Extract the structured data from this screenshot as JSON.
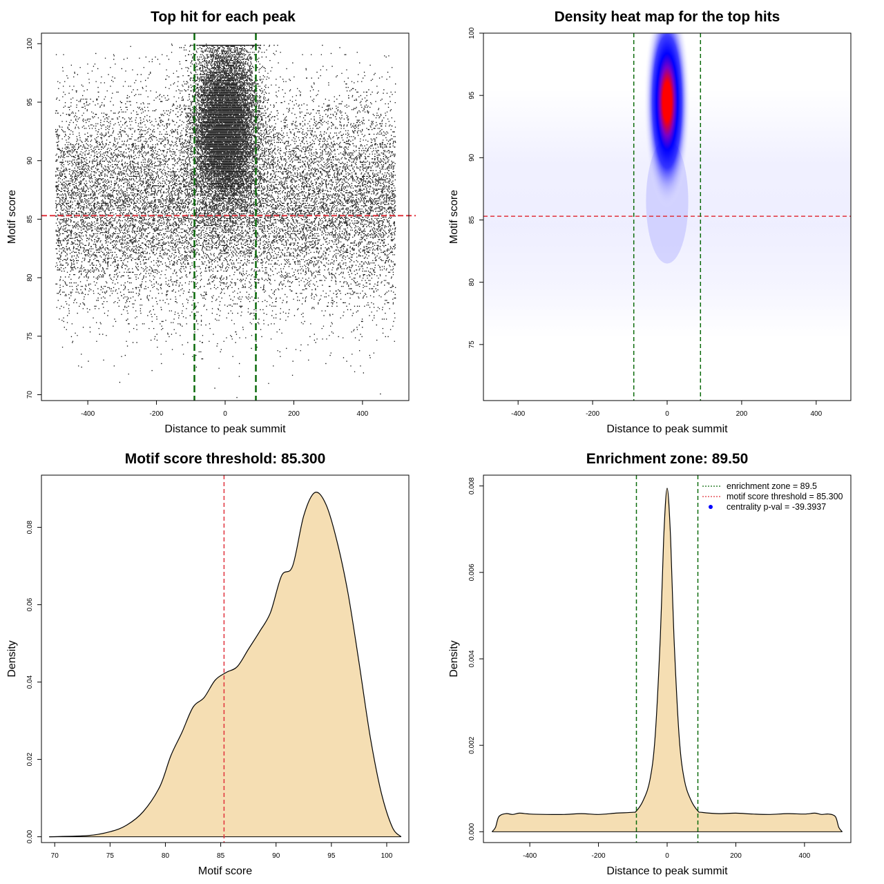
{
  "figure": {
    "colors": {
      "threshold": "#e0303a",
      "zone": "#0a6a0a",
      "fill": "#f5deb3",
      "point": "#000000",
      "heat_low": "#ffffff",
      "heat_mid": "#0000ff",
      "heat_high": "#ff0000",
      "legend_dot": "#0000ff"
    }
  },
  "chart_data": [
    {
      "type": "scatter",
      "title": "Top hit for each peak",
      "xlabel": "Distance to peak summit",
      "ylabel": "Motif score",
      "xlim": [
        -535,
        535
      ],
      "ylim": [
        69.5,
        100.9
      ],
      "xticks": [
        -400,
        -200,
        0,
        200,
        400
      ],
      "xtick_labels": [
        "-400",
        "-200",
        "0",
        "200",
        "400"
      ],
      "yticks": [
        70,
        75,
        80,
        85,
        90,
        95,
        100
      ],
      "ytick_labels": [
        "70",
        "75",
        "80",
        "85",
        "90",
        "95",
        "100"
      ],
      "threshold_y": 85.3,
      "zone_x": [
        -89.5,
        89.5
      ],
      "x_range": [
        -495,
        495
      ],
      "center_cluster": {
        "x_sd": 45,
        "y_mean": 93,
        "y_sd": 3.5
      },
      "background": {
        "y_mean": 86.5,
        "y_sd": 4.5
      }
    },
    {
      "type": "heatmap",
      "title": "Density heat map for the top hits",
      "xlabel": "Distance to peak summit",
      "ylabel": "Motif score",
      "xlim": [
        -493,
        493
      ],
      "ylim": [
        70.5,
        100.0
      ],
      "xticks": [
        -400,
        -200,
        0,
        200,
        400
      ],
      "xtick_labels": [
        "-400",
        "-200",
        "0",
        "200",
        "400"
      ],
      "yticks": [
        75,
        80,
        85,
        90,
        95,
        100
      ],
      "ytick_labels": [
        "75",
        "80",
        "85",
        "90",
        "95",
        "100"
      ],
      "threshold_y": 85.3,
      "zone_x": [
        -89.5,
        89.5
      ],
      "hotspot": {
        "x": 0,
        "y": 94.5,
        "x_sd": 30,
        "y_sd": 3.3
      },
      "background_band": {
        "y_center": 85.5,
        "y_sd": 4.0
      }
    },
    {
      "type": "area",
      "title": "Motif score threshold: 85.300",
      "xlabel": "Motif score",
      "ylabel": "Density",
      "xlim": [
        68.8,
        102.0
      ],
      "ylim": [
        -0.0015,
        0.0935
      ],
      "xticks": [
        70,
        75,
        80,
        85,
        90,
        95,
        100
      ],
      "xtick_labels": [
        "70",
        "75",
        "80",
        "85",
        "90",
        "95",
        "100"
      ],
      "yticks": [
        0,
        0.02,
        0.04,
        0.06,
        0.08
      ],
      "ytick_labels": [
        "0.00",
        "0.02",
        "0.04",
        "0.06",
        "0.08"
      ],
      "threshold_x": 85.3,
      "x": [
        69.5,
        73,
        75,
        76.5,
        78,
        79.5,
        80.5,
        81.5,
        82.5,
        83.5,
        84.5,
        85.5,
        86.5,
        87.5,
        88.5,
        89.5,
        90.5,
        91.5,
        92.5,
        93.5,
        94.5,
        95.5,
        96.5,
        97.5,
        98.5,
        99.5,
        100.5,
        101.3
      ],
      "y": [
        0,
        0.0003,
        0.0013,
        0.003,
        0.0065,
        0.013,
        0.021,
        0.027,
        0.0335,
        0.036,
        0.0405,
        0.0425,
        0.044,
        0.0485,
        0.053,
        0.058,
        0.0675,
        0.07,
        0.083,
        0.089,
        0.086,
        0.0765,
        0.063,
        0.045,
        0.026,
        0.0115,
        0.0025,
        0
      ]
    },
    {
      "type": "area",
      "title": "Enrichment zone: 89.50",
      "xlabel": "Distance to peak summit",
      "ylabel": "Density",
      "xlim": [
        -535,
        535
      ],
      "ylim": [
        -0.00025,
        0.00825
      ],
      "xticks": [
        -400,
        -200,
        0,
        200,
        400
      ],
      "xtick_labels": [
        "-400",
        "-200",
        "0",
        "200",
        "400"
      ],
      "yticks": [
        0,
        0.002,
        0.004,
        0.006,
        0.008
      ],
      "ytick_labels": [
        "0.000",
        "0.002",
        "0.004",
        "0.006",
        "0.008"
      ],
      "zone_x": [
        -89.5,
        89.5
      ],
      "x": [
        -510,
        -500,
        -490,
        -470,
        -450,
        -430,
        -400,
        -350,
        -300,
        -250,
        -200,
        -150,
        -100,
        -89.5,
        -70,
        -50,
        -35,
        -20,
        -10,
        0,
        10,
        20,
        35,
        50,
        70,
        89.5,
        100,
        150,
        200,
        250,
        300,
        350,
        400,
        430,
        450,
        470,
        490,
        500,
        510
      ],
      "y": [
        0,
        0.0001,
        0.00035,
        0.00042,
        0.0004,
        0.00043,
        0.00041,
        0.0004,
        0.0004,
        0.00042,
        0.0004,
        0.00043,
        0.00045,
        0.00048,
        0.00072,
        0.0012,
        0.0022,
        0.0045,
        0.0068,
        0.00795,
        0.0068,
        0.0045,
        0.0022,
        0.0012,
        0.00072,
        0.00048,
        0.00045,
        0.00042,
        0.00043,
        0.00041,
        0.0004,
        0.00042,
        0.00041,
        0.00043,
        0.0004,
        0.00041,
        0.00035,
        0.0001,
        0
      ],
      "legend": [
        {
          "label": "enrichment zone = 89.5",
          "marker": "dotted-line",
          "color": "#0a6a0a"
        },
        {
          "label": "motif score threshold = 85.300",
          "marker": "dotted-line",
          "color": "#e0303a"
        },
        {
          "label": "centrality p-val = -39.3937",
          "marker": "dot",
          "color": "#0000ff"
        }
      ],
      "legend_position": "top-right"
    }
  ]
}
